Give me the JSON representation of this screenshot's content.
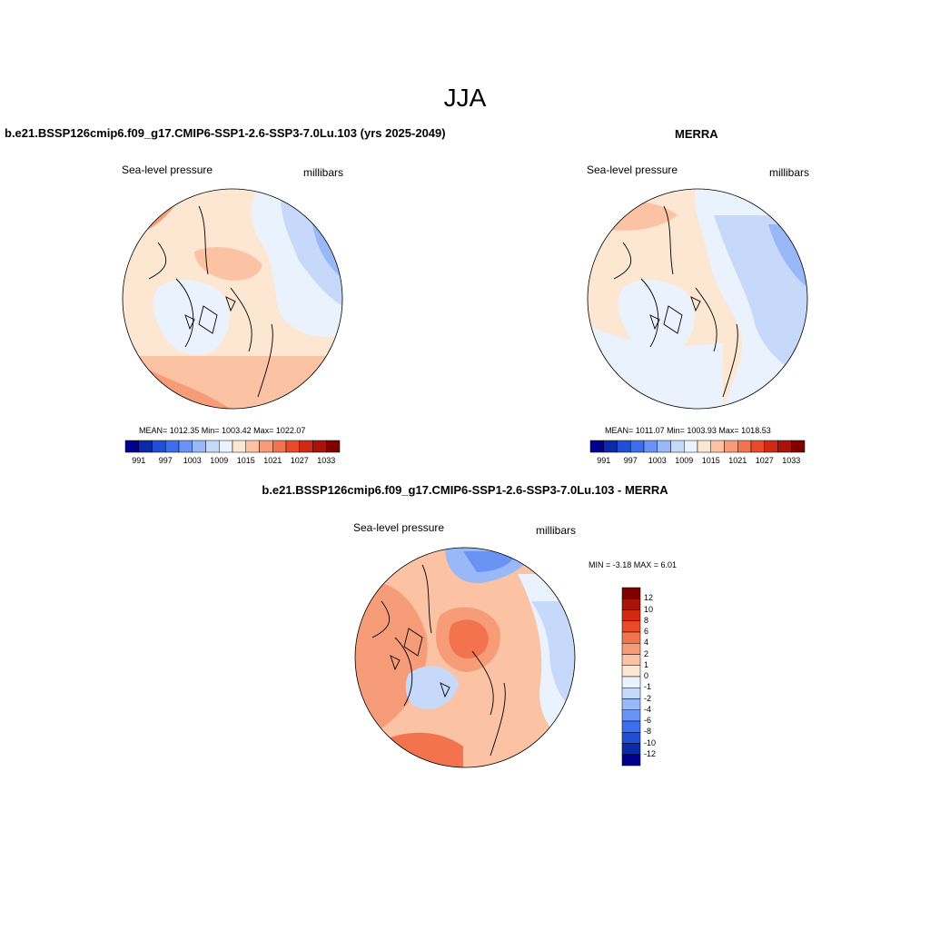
{
  "main_title": "JJA",
  "panels": {
    "model": {
      "title": "b.e21.BSSP126cmip6.f09_g17.CMIP6-SSP1-2.6-SSP3-7.0Lu.103 (yrs 2025-2049)",
      "variable": "Sea-level pressure",
      "units": "millibars",
      "stats": "MEAN= 1012.35  Min= 1003.42  Max= 1022.07"
    },
    "obs": {
      "title": "MERRA",
      "variable": "Sea-level pressure",
      "units": "millibars",
      "stats": "MEAN= 1011.07  Min= 1003.93  Max= 1018.53"
    },
    "diff": {
      "title": "b.e21.BSSP126cmip6.f09_g17.CMIP6-SSP1-2.6-SSP3-7.0Lu.103 - MERRA",
      "variable": "Sea-level pressure",
      "units": "millibars",
      "minmax": "MIN =  -3.18 MAX =   6.01"
    }
  },
  "colorbar_abs": {
    "colors": [
      "#00008c",
      "#0a2aa8",
      "#1f4fd6",
      "#3b6ff0",
      "#6994f5",
      "#99b8f8",
      "#c6d9fb",
      "#eaf2fe",
      "#fde6d2",
      "#fbc3a3",
      "#f79c78",
      "#f2734d",
      "#e84a2a",
      "#d22a12",
      "#a8140a",
      "#800000"
    ],
    "ticks": [
      "991",
      "997",
      "1003",
      "1009",
      "1015",
      "1021",
      "1027",
      "1033"
    ]
  },
  "colorbar_diff": {
    "colors": [
      "#800000",
      "#a8140a",
      "#d22a12",
      "#e84a2a",
      "#f2734d",
      "#f79c78",
      "#fbc3a3",
      "#fde6d2",
      "#eaf2fe",
      "#c6d9fb",
      "#99b8f8",
      "#6994f5",
      "#3b6ff0",
      "#1f4fd6",
      "#0a2aa8",
      "#00008c"
    ],
    "ticks": [
      "12",
      "10",
      "8",
      "6",
      "4",
      "2",
      "1",
      "0",
      "-1",
      "-2",
      "-4",
      "-6",
      "-8",
      "-10",
      "-12"
    ]
  }
}
